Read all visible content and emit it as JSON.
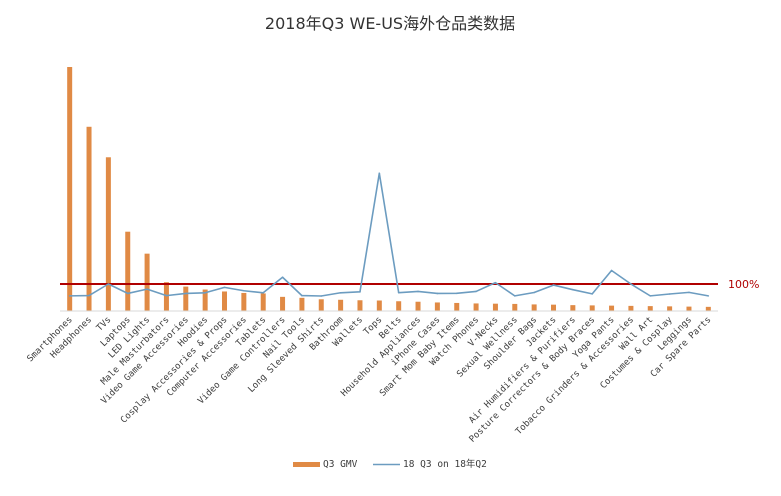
{
  "chart_data": {
    "type": "bar",
    "title": "2018年Q3 WE-US海外仓品类数据",
    "categories": [
      "Smartphones",
      "Headphones",
      "TVs",
      "Laptops",
      "LED Lights",
      "Male Masturbators",
      "Video Game Accessories",
      "Hoodies",
      "Cosplay Accessories & Props",
      "Computer Accessories",
      "Tablets",
      "Video Game Controllers",
      "Nail Tools",
      "Long Sleeved Shirts",
      "Bathroom",
      "Wallets",
      "Tops",
      "Belts",
      "Household Appliances",
      "iPhone Cases",
      "Smart Mom Baby Items",
      "Watch Phones",
      "V-Necks",
      "Sexual Wellness",
      "Shoulder Bags",
      "Jackets",
      "Air Humidifiers & Purifiers",
      "Posture Correctors & Body Braces",
      "Yoga Pants",
      "Tobacco Grinders & Accessories",
      "Wall Art",
      "Costumes & Cosplay",
      "Leggings",
      "Car Spare Parts"
    ],
    "series": [
      {
        "name": "Q3 GMV",
        "type": "bar",
        "color": "#E08A45",
        "values": [
          1000,
          755,
          630,
          325,
          235,
          118,
          100,
          88,
          80,
          74,
          72,
          58,
          54,
          48,
          46,
          44,
          43,
          40,
          38,
          35,
          33,
          31,
          30,
          29,
          27,
          26,
          24,
          23,
          22,
          21,
          20,
          19,
          18,
          17
        ]
      },
      {
        "name": "18 Q3 on 18年Q2",
        "type": "line",
        "color": "#6C9CC0",
        "values": [
          0.12,
          0.14,
          1.0,
          0.3,
          0.62,
          0.14,
          0.3,
          0.35,
          0.75,
          0.5,
          0.35,
          1.5,
          0.14,
          0.11,
          0.35,
          0.42,
          9.2,
          0.36,
          0.45,
          0.3,
          0.31,
          0.45,
          1.1,
          0.12,
          0.37,
          0.92,
          0.58,
          0.27,
          2.0,
          1.0,
          0.12,
          0.26,
          0.38,
          0.12
        ]
      }
    ],
    "reference_line": {
      "value": 1.0,
      "label": "100%",
      "color": "#B00000"
    },
    "legend_position": "bottom",
    "grid": false
  }
}
